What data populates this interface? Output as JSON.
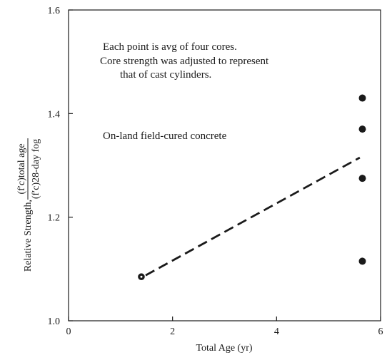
{
  "chart_data": {
    "type": "scatter",
    "title": "",
    "xlabel": "Total Age (yr)",
    "ylabel_prefix": "Relative Strength, ",
    "ylabel_numerator": "(f′c)total age",
    "ylabel_denominator": "(f′c)28-day fog",
    "xlim": [
      0,
      6
    ],
    "ylim": [
      1.0,
      1.6
    ],
    "xticks": [
      0,
      2,
      4,
      6
    ],
    "yticks": [
      1.0,
      1.2,
      1.4,
      1.6
    ],
    "xtick_labels": [
      "0",
      "2",
      "4",
      "6"
    ],
    "ytick_labels": [
      "1.0",
      "1.2",
      "1.4",
      "1.6"
    ],
    "grid": false,
    "series": [
      {
        "points": [
          {
            "x": 1.4,
            "y": 1.085,
            "marker": "open-dot"
          },
          {
            "x": 5.65,
            "y": 1.43,
            "marker": "dot"
          },
          {
            "x": 5.65,
            "y": 1.37,
            "marker": "dot"
          },
          {
            "x": 5.65,
            "y": 1.275,
            "marker": "dot"
          },
          {
            "x": 5.65,
            "y": 1.115,
            "marker": "dot"
          }
        ]
      }
    ],
    "trend_line": {
      "x": [
        1.4,
        5.6
      ],
      "y": [
        1.085,
        1.315
      ],
      "style": "dashed"
    },
    "annotations": [
      "Each point is avg of four cores.",
      "Core strength was adjusted to represent",
      "that of cast cylinders.",
      "On-land field-cured concrete"
    ]
  }
}
